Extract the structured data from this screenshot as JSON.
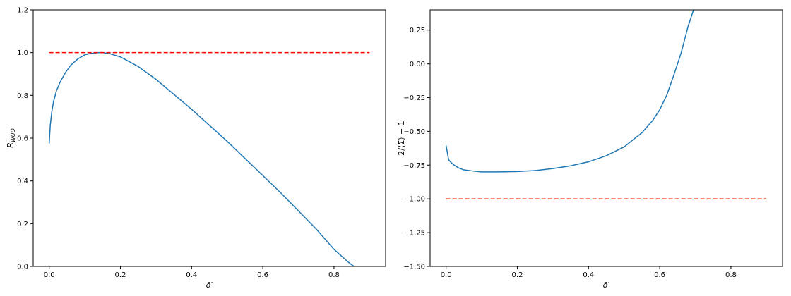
{
  "colors": {
    "curve": "#1f77b4",
    "reference": "#ff0000"
  },
  "chart_data": [
    {
      "type": "line",
      "xlabel": "δ′",
      "ylabel": "R_WUD",
      "ylabel_main": "R",
      "ylabel_sub": "WUD",
      "xlim": [
        -0.045,
        0.945
      ],
      "ylim": [
        0,
        1.2
      ],
      "xticks": [
        0.0,
        0.2,
        0.4,
        0.6,
        0.8
      ],
      "xtick_labels": [
        "0.0",
        "0.2",
        "0.4",
        "0.6",
        "0.8"
      ],
      "yticks": [
        0.0,
        0.2,
        0.4,
        0.6,
        0.8,
        1.0,
        1.2
      ],
      "ytick_labels": [
        "0.0",
        "0.2",
        "0.4",
        "0.6",
        "0.8",
        "1.0",
        "1.2"
      ],
      "series": [
        {
          "style": "solid",
          "color": "#1f77b4",
          "x": [
            0.0,
            0.003,
            0.007,
            0.012,
            0.02,
            0.03,
            0.045,
            0.06,
            0.08,
            0.1,
            0.12,
            0.14,
            0.15,
            0.17,
            0.2,
            0.25,
            0.3,
            0.35,
            0.4,
            0.45,
            0.5,
            0.55,
            0.6,
            0.65,
            0.7,
            0.75,
            0.8,
            0.82,
            0.84,
            0.856
          ],
          "y": [
            0.575,
            0.66,
            0.72,
            0.77,
            0.82,
            0.86,
            0.905,
            0.94,
            0.97,
            0.99,
            0.997,
            1.0,
            1.0,
            0.995,
            0.98,
            0.935,
            0.875,
            0.805,
            0.735,
            0.66,
            0.585,
            0.505,
            0.425,
            0.345,
            0.26,
            0.175,
            0.08,
            0.05,
            0.02,
            0.0
          ]
        },
        {
          "style": "dashed",
          "color": "#ff0000",
          "x": [
            0.0,
            0.9
          ],
          "y": [
            1.0,
            1.0
          ]
        }
      ]
    },
    {
      "type": "line",
      "xlabel": "δ′",
      "ylabel": "2/⟨Σ⟩ − 1",
      "xlim": [
        -0.045,
        0.945
      ],
      "ylim": [
        -1.5,
        0.4
      ],
      "xticks": [
        0.0,
        0.2,
        0.4,
        0.6,
        0.8
      ],
      "xtick_labels": [
        "0.0",
        "0.2",
        "0.4",
        "0.6",
        "0.8"
      ],
      "yticks": [
        -1.5,
        -1.25,
        -1.0,
        -0.75,
        -0.5,
        -0.25,
        0.0,
        0.25
      ],
      "ytick_labels": [
        "−1.50",
        "−1.25",
        "−1.00",
        "−0.75",
        "−0.50",
        "−0.25",
        "0.00",
        "0.25"
      ],
      "series": [
        {
          "style": "solid",
          "color": "#1f77b4",
          "x": [
            0.0,
            0.003,
            0.007,
            0.012,
            0.02,
            0.035,
            0.05,
            0.08,
            0.1,
            0.15,
            0.2,
            0.25,
            0.3,
            0.35,
            0.4,
            0.45,
            0.5,
            0.55,
            0.58,
            0.6,
            0.62,
            0.64,
            0.66,
            0.68,
            0.695
          ],
          "y": [
            -0.605,
            -0.65,
            -0.71,
            -0.725,
            -0.745,
            -0.77,
            -0.785,
            -0.795,
            -0.8,
            -0.8,
            -0.797,
            -0.79,
            -0.775,
            -0.755,
            -0.725,
            -0.68,
            -0.615,
            -0.51,
            -0.42,
            -0.34,
            -0.23,
            -0.08,
            0.08,
            0.28,
            0.4
          ]
        },
        {
          "style": "dashed",
          "color": "#ff0000",
          "x": [
            0.0,
            0.9
          ],
          "y": [
            -1.0,
            -1.0
          ]
        }
      ]
    }
  ]
}
